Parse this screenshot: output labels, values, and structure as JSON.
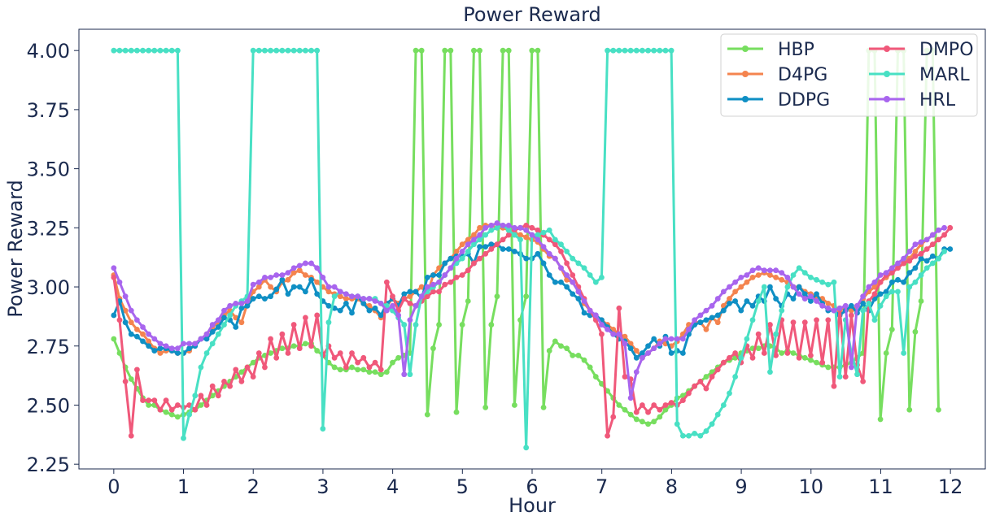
{
  "chart_data": {
    "type": "line",
    "title": "Power Reward",
    "xlabel": "Hour",
    "ylabel": "Power Reward",
    "xlim": [
      -0.5,
      12.5
    ],
    "ylim": [
      2.23,
      4.09
    ],
    "xticks": [
      0,
      1,
      2,
      3,
      4,
      5,
      6,
      7,
      8,
      9,
      10,
      11,
      12
    ],
    "xtick_labels": [
      "0",
      "1",
      "2",
      "3",
      "4",
      "5",
      "6",
      "7",
      "8",
      "9",
      "10",
      "11",
      "12"
    ],
    "yticks": [
      2.25,
      2.5,
      2.75,
      3.0,
      3.25,
      3.5,
      3.75,
      4.0
    ],
    "ytick_labels": [
      "2.25",
      "2.50",
      "2.75",
      "3.00",
      "3.25",
      "3.50",
      "3.75",
      "4.00"
    ],
    "grid": false,
    "legend": {
      "position": "top-right",
      "columns": 2
    },
    "x_step": 0.0833,
    "series": [
      {
        "name": "HBP",
        "color": "#77de5f",
        "values": [
          2.78,
          2.72,
          2.66,
          2.61,
          2.57,
          2.53,
          2.5,
          2.5,
          2.48,
          2.47,
          2.46,
          2.45,
          2.46,
          2.47,
          2.48,
          2.5,
          2.52,
          2.54,
          2.56,
          2.58,
          2.6,
          2.62,
          2.64,
          2.66,
          2.68,
          2.7,
          2.71,
          2.72,
          2.73,
          2.74,
          2.74,
          2.75,
          2.75,
          2.76,
          2.76,
          2.73,
          2.71,
          2.68,
          2.66,
          2.65,
          2.65,
          2.66,
          2.65,
          2.65,
          2.64,
          2.64,
          2.63,
          2.64,
          2.68,
          2.7,
          2.71,
          2.72,
          4.0,
          4.0,
          2.46,
          2.74,
          2.84,
          4.0,
          4.0,
          2.47,
          2.84,
          2.94,
          4.0,
          4.0,
          2.49,
          2.84,
          2.96,
          4.0,
          4.0,
          2.5,
          2.86,
          2.96,
          4.0,
          4.0,
          2.49,
          2.73,
          2.77,
          2.75,
          2.74,
          2.71,
          2.71,
          2.69,
          2.66,
          2.62,
          2.59,
          2.56,
          2.53,
          2.5,
          2.48,
          2.46,
          2.44,
          2.43,
          2.42,
          2.43,
          2.45,
          2.48,
          2.5,
          2.53,
          2.54,
          2.56,
          2.58,
          2.6,
          2.62,
          2.64,
          2.66,
          2.68,
          2.69,
          2.7,
          2.72,
          2.73,
          2.74,
          2.74,
          2.75,
          2.75,
          2.74,
          2.72,
          2.73,
          2.72,
          2.71,
          2.7,
          2.69,
          2.68,
          2.67,
          2.66,
          2.66,
          2.66,
          2.67,
          2.68,
          2.7,
          2.72,
          4.0,
          4.0,
          2.44,
          2.72,
          2.82,
          4.0,
          4.0,
          2.48,
          2.81,
          2.94,
          4.0,
          4.0,
          2.48
        ]
      },
      {
        "name": "D4PG",
        "color": "#f4844f",
        "values": [
          3.05,
          2.95,
          2.9,
          2.85,
          2.82,
          2.8,
          2.77,
          2.74,
          2.72,
          2.73,
          2.73,
          2.72,
          2.72,
          2.73,
          2.76,
          2.78,
          2.8,
          2.83,
          2.85,
          2.88,
          2.9,
          2.87,
          2.85,
          2.93,
          2.98,
          3.0,
          3.03,
          3.0,
          2.98,
          3.02,
          3.03,
          3.06,
          3.07,
          3.05,
          3.04,
          3.02,
          3.0,
          2.98,
          2.97,
          2.96,
          2.95,
          2.95,
          2.95,
          2.93,
          2.92,
          2.9,
          2.87,
          2.92,
          2.95,
          2.93,
          2.95,
          2.96,
          2.98,
          3.0,
          2.97,
          3.05,
          3.08,
          3.1,
          3.12,
          3.15,
          3.18,
          3.2,
          3.22,
          3.25,
          3.26,
          3.26,
          3.25,
          3.25,
          3.24,
          3.23,
          3.22,
          3.21,
          3.2,
          3.19,
          3.16,
          3.13,
          3.12,
          3.08,
          3.03,
          3.02,
          2.98,
          2.93,
          2.9,
          2.87,
          2.86,
          2.84,
          2.82,
          2.8,
          2.79,
          2.76,
          2.73,
          2.7,
          2.72,
          2.74,
          2.77,
          2.76,
          2.75,
          2.77,
          2.8,
          2.84,
          2.85,
          2.85,
          2.82,
          2.87,
          2.85,
          2.92,
          2.95,
          2.98,
          3.0,
          3.02,
          3.04,
          3.05,
          3.06,
          3.05,
          3.04,
          3.03,
          3.02,
          3.0,
          3.0,
          2.98,
          2.97,
          2.96,
          2.95,
          2.93,
          2.92,
          2.9,
          2.91,
          2.9,
          2.92,
          2.95,
          2.98,
          3.0,
          3.02,
          3.04,
          3.06,
          3.08,
          3.1,
          3.12,
          3.15,
          3.18,
          3.2,
          3.22,
          3.24
        ]
      },
      {
        "name": "DDPG",
        "color": "#0f8fc4",
        "values": [
          2.88,
          2.94,
          2.85,
          2.8,
          2.79,
          2.77,
          2.75,
          2.73,
          2.74,
          2.74,
          2.73,
          2.72,
          2.72,
          2.74,
          2.75,
          2.78,
          2.78,
          2.81,
          2.83,
          2.87,
          2.86,
          2.83,
          2.91,
          2.92,
          2.95,
          2.96,
          2.95,
          2.96,
          2.99,
          3.03,
          2.97,
          3.0,
          3.0,
          2.98,
          3.03,
          2.97,
          2.94,
          2.92,
          2.91,
          2.9,
          2.93,
          2.89,
          2.96,
          2.93,
          2.9,
          2.91,
          2.88,
          2.93,
          2.95,
          2.92,
          2.97,
          2.98,
          2.98,
          2.95,
          3.04,
          3.05,
          3.05,
          3.1,
          3.12,
          3.13,
          3.13,
          3.14,
          3.1,
          3.17,
          3.17,
          3.18,
          3.18,
          3.16,
          3.16,
          3.15,
          3.14,
          3.12,
          3.12,
          3.14,
          3.1,
          3.05,
          3.02,
          3.02,
          3.0,
          2.97,
          2.95,
          2.89,
          2.88,
          2.88,
          2.86,
          2.83,
          2.8,
          2.78,
          2.77,
          2.74,
          2.7,
          2.72,
          2.75,
          2.78,
          2.75,
          2.79,
          2.72,
          2.73,
          2.72,
          2.8,
          2.84,
          2.85,
          2.86,
          2.87,
          2.88,
          2.9,
          2.93,
          2.94,
          2.9,
          2.94,
          2.92,
          2.96,
          2.94,
          3.0,
          2.95,
          2.92,
          2.97,
          2.95,
          3.0,
          2.97,
          2.94,
          2.97,
          2.93,
          2.9,
          2.9,
          2.88,
          2.9,
          2.92,
          2.89,
          2.93,
          2.9,
          2.95,
          2.97,
          2.98,
          3.02,
          3.03,
          3.02,
          3.06,
          3.08,
          3.12,
          3.11,
          3.13,
          3.12,
          3.16,
          3.16
        ]
      },
      {
        "name": "DMPO",
        "color": "#f0587a",
        "values": [
          3.04,
          2.86,
          2.6,
          2.37,
          2.65,
          2.52,
          2.52,
          2.52,
          2.48,
          2.52,
          2.48,
          2.5,
          2.49,
          2.5,
          2.48,
          2.54,
          2.5,
          2.58,
          2.54,
          2.6,
          2.58,
          2.65,
          2.6,
          2.66,
          2.62,
          2.72,
          2.66,
          2.78,
          2.7,
          2.8,
          2.72,
          2.84,
          2.74,
          2.87,
          2.75,
          2.88,
          2.71,
          2.75,
          2.7,
          2.72,
          2.66,
          2.72,
          2.68,
          2.7,
          2.66,
          2.68,
          2.65,
          3.02,
          2.96,
          2.9,
          2.95,
          2.93,
          2.92,
          2.94,
          2.96,
          2.98,
          2.98,
          3.01,
          3.02,
          3.04,
          3.05,
          3.07,
          3.1,
          3.12,
          3.14,
          3.16,
          3.18,
          3.2,
          3.22,
          3.24,
          3.25,
          3.26,
          3.25,
          3.24,
          3.22,
          3.2,
          3.18,
          3.15,
          3.1,
          3.05,
          3.0,
          2.95,
          2.9,
          2.86,
          2.8,
          2.37,
          2.45,
          2.91,
          2.62,
          2.61,
          2.47,
          2.5,
          2.47,
          2.5,
          2.48,
          2.5,
          2.51,
          2.5,
          2.52,
          2.55,
          2.58,
          2.6,
          2.57,
          2.62,
          2.65,
          2.68,
          2.7,
          2.72,
          2.68,
          2.75,
          2.7,
          2.8,
          2.72,
          2.84,
          2.71,
          2.86,
          2.72,
          2.85,
          2.7,
          2.85,
          2.71,
          2.86,
          2.68,
          2.86,
          2.58,
          2.91,
          2.62,
          2.88,
          2.67,
          2.6,
          2.94,
          2.97,
          3.02,
          3.05,
          3.06,
          3.08,
          3.1,
          3.11,
          3.13,
          3.14,
          3.16,
          3.18,
          3.2,
          3.22,
          3.25
        ]
      },
      {
        "name": "MARL",
        "color": "#48e0c4",
        "values": [
          4.0,
          4.0,
          4.0,
          4.0,
          4.0,
          4.0,
          4.0,
          4.0,
          4.0,
          4.0,
          4.0,
          4.0,
          2.36,
          2.46,
          2.54,
          2.66,
          2.72,
          2.76,
          2.8,
          2.84,
          2.88,
          2.92,
          2.94,
          2.96,
          4.0,
          4.0,
          4.0,
          4.0,
          4.0,
          4.0,
          4.0,
          4.0,
          4.0,
          4.0,
          4.0,
          4.0,
          2.4,
          2.85,
          2.96,
          2.98,
          2.97,
          2.96,
          2.96,
          2.95,
          2.95,
          2.95,
          2.93,
          2.92,
          2.9,
          2.87,
          2.84,
          2.63,
          2.84,
          2.96,
          2.98,
          3.0,
          3.02,
          3.05,
          3.08,
          3.1,
          3.12,
          3.15,
          3.18,
          3.2,
          3.22,
          3.24,
          3.25,
          3.26,
          3.24,
          3.22,
          3.2,
          2.32,
          3.22,
          3.22,
          3.23,
          3.24,
          3.2,
          3.18,
          3.15,
          3.12,
          3.1,
          3.08,
          3.05,
          3.02,
          3.04,
          4.0,
          4.0,
          4.0,
          4.0,
          4.0,
          4.0,
          4.0,
          4.0,
          4.0,
          4.0,
          4.0,
          4.0,
          2.42,
          2.37,
          2.37,
          2.38,
          2.37,
          2.39,
          2.42,
          2.46,
          2.5,
          2.55,
          2.62,
          2.7,
          2.78,
          2.86,
          2.94,
          3.0,
          2.64,
          2.8,
          2.9,
          3.0,
          3.05,
          3.08,
          3.06,
          3.04,
          3.03,
          3.02,
          3.01,
          3.02,
          2.62,
          2.86,
          2.72,
          2.63,
          2.9,
          2.93,
          2.86,
          2.92,
          2.96,
          2.98,
          2.98,
          2.72,
          3.0,
          3.02,
          3.05,
          3.08,
          3.1,
          3.12,
          3.15
        ]
      },
      {
        "name": "HRL",
        "color": "#a865ee",
        "values": [
          3.08,
          3.02,
          2.96,
          2.9,
          2.86,
          2.83,
          2.8,
          2.78,
          2.76,
          2.75,
          2.74,
          2.74,
          2.76,
          2.76,
          2.76,
          2.78,
          2.8,
          2.84,
          2.86,
          2.9,
          2.92,
          2.93,
          2.93,
          2.94,
          3.01,
          3.02,
          3.04,
          3.04,
          3.05,
          3.05,
          3.06,
          3.08,
          3.09,
          3.1,
          3.1,
          3.08,
          3.04,
          3.0,
          3.0,
          2.98,
          2.97,
          2.96,
          2.96,
          2.95,
          2.95,
          2.94,
          2.93,
          2.9,
          2.92,
          2.88,
          2.63,
          2.86,
          2.92,
          2.96,
          3.0,
          3.01,
          3.02,
          3.05,
          3.08,
          3.12,
          3.15,
          3.18,
          3.2,
          3.22,
          3.25,
          3.26,
          3.27,
          3.26,
          3.26,
          3.25,
          3.25,
          3.24,
          3.22,
          3.2,
          3.17,
          3.14,
          3.12,
          3.08,
          3.05,
          3.02,
          2.98,
          2.94,
          2.9,
          2.88,
          2.84,
          2.82,
          2.8,
          2.8,
          2.76,
          2.53,
          2.64,
          2.7,
          2.72,
          2.74,
          2.76,
          2.78,
          2.78,
          2.78,
          2.78,
          2.82,
          2.86,
          2.88,
          2.9,
          2.92,
          2.95,
          2.98,
          3.0,
          3.02,
          3.04,
          3.05,
          3.07,
          3.08,
          3.07,
          3.07,
          3.07,
          3.06,
          3.04,
          3.0,
          2.97,
          2.95,
          2.96,
          2.94,
          2.92,
          2.91,
          2.9,
          2.91,
          2.92,
          2.66,
          2.92,
          2.96,
          3.0,
          3.02,
          3.05,
          3.06,
          3.08,
          3.1,
          3.12,
          3.15,
          3.18,
          3.19,
          3.2,
          3.22,
          3.24,
          3.25
        ]
      }
    ]
  }
}
